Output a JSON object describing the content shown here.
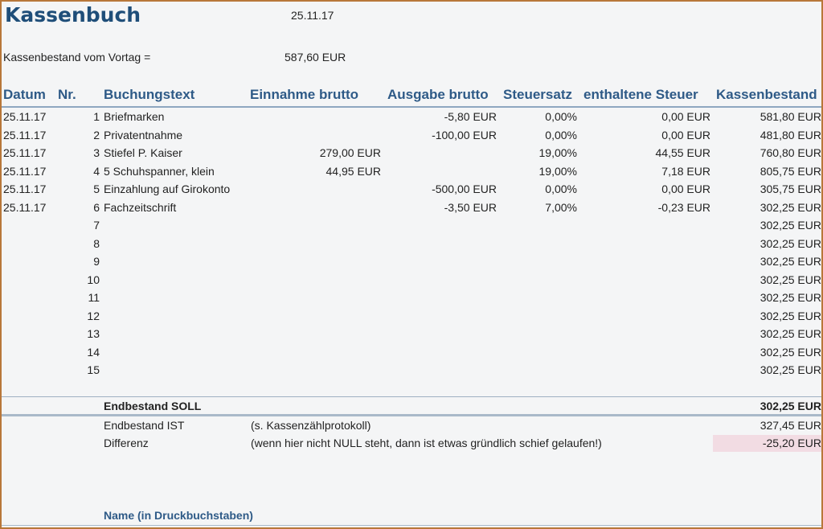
{
  "header": {
    "title": "Kassenbuch",
    "date": "25.11.17",
    "carry_over_label": "Kassenbestand vom Vortag =",
    "carry_over_value": "587,60 EUR"
  },
  "columns": {
    "date": "Datum",
    "nr": "Nr.",
    "text": "Buchungstext",
    "income": "Einnahme brutto",
    "expense": "Ausgabe brutto",
    "tax_rate": "Steuersatz",
    "tax_included": "enthaltene Steuer",
    "balance": "Kassenbestand"
  },
  "rows": [
    {
      "date": "25.11.17",
      "nr": "1",
      "text": "Briefmarken",
      "income": "",
      "expense": "-5,80 EUR",
      "tax_rate": "0,00%",
      "tax": "0,00 EUR",
      "balance": "581,80 EUR"
    },
    {
      "date": "25.11.17",
      "nr": "2",
      "text": "Privatentnahme",
      "income": "",
      "expense": "-100,00 EUR",
      "tax_rate": "0,00%",
      "tax": "0,00 EUR",
      "balance": "481,80 EUR"
    },
    {
      "date": "25.11.17",
      "nr": "3",
      "text": "Stiefel P. Kaiser",
      "income": "279,00 EUR",
      "expense": "",
      "tax_rate": "19,00%",
      "tax": "44,55 EUR",
      "balance": "760,80 EUR"
    },
    {
      "date": "25.11.17",
      "nr": "4",
      "text": "5 Schuhspanner, klein",
      "income": "44,95 EUR",
      "expense": "",
      "tax_rate": "19,00%",
      "tax": "7,18 EUR",
      "balance": "805,75 EUR"
    },
    {
      "date": "25.11.17",
      "nr": "5",
      "text": "Einzahlung auf Girokonto",
      "income": "",
      "expense": "-500,00 EUR",
      "tax_rate": "0,00%",
      "tax": "0,00 EUR",
      "balance": "305,75 EUR"
    },
    {
      "date": "25.11.17",
      "nr": "6",
      "text": "Fachzeitschrift",
      "income": "",
      "expense": "-3,50 EUR",
      "tax_rate": "7,00%",
      "tax": "-0,23 EUR",
      "balance": "302,25 EUR"
    },
    {
      "date": "",
      "nr": "7",
      "text": "",
      "income": "",
      "expense": "",
      "tax_rate": "",
      "tax": "",
      "balance": "302,25 EUR"
    },
    {
      "date": "",
      "nr": "8",
      "text": "",
      "income": "",
      "expense": "",
      "tax_rate": "",
      "tax": "",
      "balance": "302,25 EUR"
    },
    {
      "date": "",
      "nr": "9",
      "text": "",
      "income": "",
      "expense": "",
      "tax_rate": "",
      "tax": "",
      "balance": "302,25 EUR"
    },
    {
      "date": "",
      "nr": "10",
      "text": "",
      "income": "",
      "expense": "",
      "tax_rate": "",
      "tax": "",
      "balance": "302,25 EUR"
    },
    {
      "date": "",
      "nr": "11",
      "text": "",
      "income": "",
      "expense": "",
      "tax_rate": "",
      "tax": "",
      "balance": "302,25 EUR"
    },
    {
      "date": "",
      "nr": "12",
      "text": "",
      "income": "",
      "expense": "",
      "tax_rate": "",
      "tax": "",
      "balance": "302,25 EUR"
    },
    {
      "date": "",
      "nr": "13",
      "text": "",
      "income": "",
      "expense": "",
      "tax_rate": "",
      "tax": "",
      "balance": "302,25 EUR"
    },
    {
      "date": "",
      "nr": "14",
      "text": "",
      "income": "",
      "expense": "",
      "tax_rate": "",
      "tax": "",
      "balance": "302,25 EUR"
    },
    {
      "date": "",
      "nr": "15",
      "text": "",
      "income": "",
      "expense": "",
      "tax_rate": "",
      "tax": "",
      "balance": "302,25 EUR"
    }
  ],
  "summary": {
    "soll_label": "Endbestand SOLL",
    "soll_value": "302,25 EUR",
    "ist_label": "Endbestand IST",
    "ist_note": "(s. Kassenzählprotokoll)",
    "ist_value": "327,45 EUR",
    "diff_label": "Differenz",
    "diff_note": "(wenn hier nicht NULL steht, dann ist etwas gründlich schief gelaufen!)",
    "diff_value": "-25,20 EUR",
    "diff_highlight_color": "#f2dce3"
  },
  "footer": {
    "name_label": "Name (in Druckbuchstaben)"
  },
  "colors": {
    "title": "#1f4e79",
    "header": "#2e5a87",
    "frame_border": "#b8773a"
  }
}
